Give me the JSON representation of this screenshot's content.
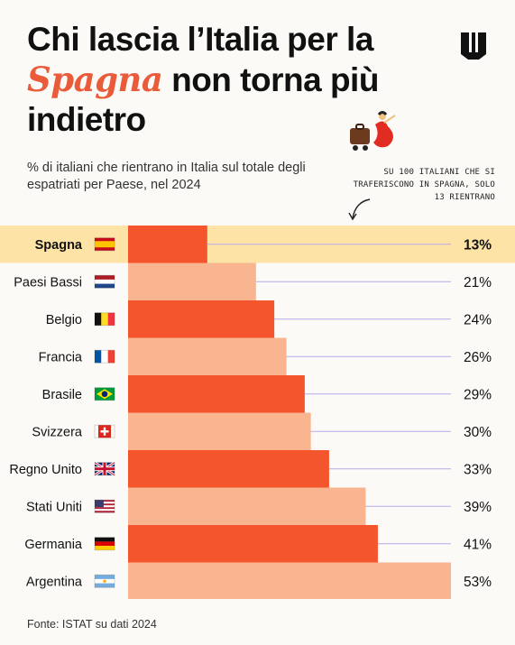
{
  "header": {
    "title_before": "Chi lascia l’Italia per la ",
    "title_highlight": "Spagna",
    "title_after": " non torna più indietro",
    "subtitle": "% di italiani che rientrano in Italia sul totale degli espatriati per Paese, nel 2024",
    "logo_icon": "publisher-logo-icon",
    "illustration_icon": "flamenco-dancer-icon"
  },
  "annotation": {
    "text": "Su 100 italiani che si traferiscono in Spagna, solo 13 rientrano",
    "arrow_icon": "curved-arrow-icon"
  },
  "footer": {
    "source": "Fonte: ISTAT su dati 2024"
  },
  "colors": {
    "highlight_row": "#fde3a6",
    "bar_dark": "#f4552d",
    "bar_light": "#f8b58f",
    "guide_line": "#b9a8ea",
    "title_accent": "#ea5b3a"
  },
  "chart_data": {
    "type": "bar",
    "orientation": "horizontal",
    "title": "Chi lascia l’Italia per la Spagna non torna più indietro",
    "subtitle": "% di italiani che rientrano in Italia sul totale degli espatriati per Paese, nel 2024",
    "categories": [
      "Spagna",
      "Paesi Bassi",
      "Belgio",
      "Francia",
      "Brasile",
      "Svizzera",
      "Regno Unito",
      "Stati Uniti",
      "Germania",
      "Argentina"
    ],
    "values": [
      13,
      21,
      24,
      26,
      29,
      30,
      33,
      39,
      41,
      53
    ],
    "labels": [
      "13%",
      "21%",
      "24%",
      "26%",
      "29%",
      "30%",
      "33%",
      "39%",
      "41%",
      "53%"
    ],
    "flags": [
      "spain-flag-icon",
      "netherlands-flag-icon",
      "belgium-flag-icon",
      "france-flag-icon",
      "brazil-flag-icon",
      "switzerland-flag-icon",
      "uk-flag-icon",
      "usa-flag-icon",
      "germany-flag-icon",
      "argentina-flag-icon"
    ],
    "highlight": "Spagna",
    "xlim": [
      0,
      53
    ],
    "grid": false,
    "legend": "none"
  }
}
